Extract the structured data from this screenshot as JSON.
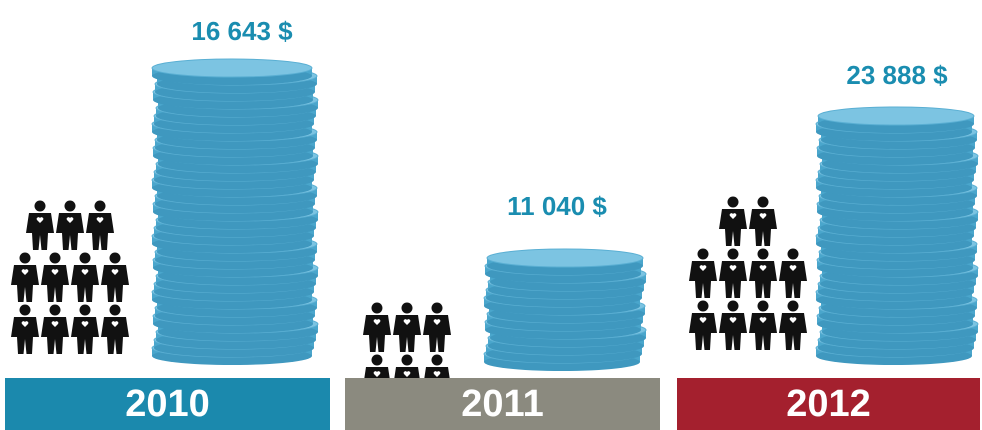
{
  "panels": [
    {
      "year": "2010",
      "amount": "16 643 $",
      "people_rows": [
        3,
        4,
        4
      ],
      "color": "#1b89ad"
    },
    {
      "year": "2011",
      "amount": "11 040 $",
      "people_rows": [
        3,
        3
      ],
      "color": "#8b8a7f"
    },
    {
      "year": "2012",
      "amount": "23 888 $",
      "people_rows": [
        2,
        4,
        4
      ],
      "color": "#a4202e"
    }
  ]
}
